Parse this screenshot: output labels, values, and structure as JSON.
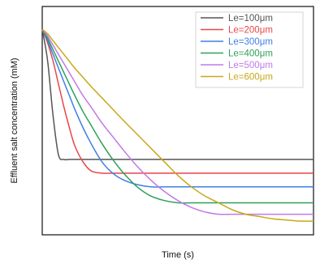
{
  "chart_data": {
    "type": "line",
    "title": "",
    "xlabel": "Time (s)",
    "ylabel": "Effluent salt concentration (mM)",
    "x_ticks": "none",
    "y_ticks": "none",
    "grid": false,
    "legend_position": "top-right",
    "xlim": [
      0,
      100
    ],
    "ylim": [
      0,
      100
    ],
    "x": [
      0,
      2,
      4,
      6,
      8,
      10,
      12,
      15,
      18,
      22,
      26,
      30,
      35,
      40,
      45,
      50,
      55,
      60,
      65,
      70,
      75,
      80,
      85,
      90,
      95,
      100
    ],
    "series": [
      {
        "name": "Le=100μm",
        "color": "#555555",
        "values": [
          90,
          76,
          52,
          35,
          33,
          33,
          33,
          33,
          33,
          33,
          33,
          33,
          33,
          33,
          33,
          33,
          33,
          33,
          33,
          33,
          33,
          33,
          33,
          33,
          33,
          33
        ]
      },
      {
        "name": "Le=200μm",
        "color": "#e8464b",
        "values": [
          90,
          84,
          76,
          66,
          56,
          47,
          39,
          32,
          28,
          27,
          27,
          27,
          27,
          27,
          27,
          27,
          27,
          27,
          27,
          27,
          27,
          27,
          27,
          27,
          27,
          27
        ]
      },
      {
        "name": "Le=300μm",
        "color": "#3f7fe6",
        "values": [
          90,
          85,
          79,
          73,
          67,
          61,
          55,
          47,
          40,
          32,
          27,
          24,
          22,
          21,
          21,
          21,
          21,
          21,
          21,
          21,
          21,
          21,
          21,
          21,
          21,
          21
        ]
      },
      {
        "name": "Le=400μm",
        "color": "#2ea05a",
        "values": [
          90,
          86,
          81,
          76,
          71,
          66,
          61,
          54,
          48,
          40,
          33,
          27,
          21,
          17,
          15,
          14,
          14,
          14,
          14,
          14,
          14,
          14,
          14,
          14,
          14,
          14
        ]
      },
      {
        "name": "Le=500μm",
        "color": "#c07ae6",
        "values": [
          90,
          87,
          83,
          79,
          75,
          71,
          67,
          61,
          56,
          49,
          43,
          37,
          30,
          24,
          19,
          15,
          12,
          10,
          9,
          9,
          9,
          9,
          9,
          9,
          9,
          9
        ]
      },
      {
        "name": "Le=600μm",
        "color": "#c9a71a",
        "values": [
          90,
          88,
          85,
          82,
          79,
          76,
          73,
          69,
          65,
          60,
          55,
          50,
          44,
          38,
          32,
          26,
          21,
          17,
          14,
          11,
          9,
          8,
          7,
          6.5,
          6,
          6
        ]
      }
    ]
  }
}
